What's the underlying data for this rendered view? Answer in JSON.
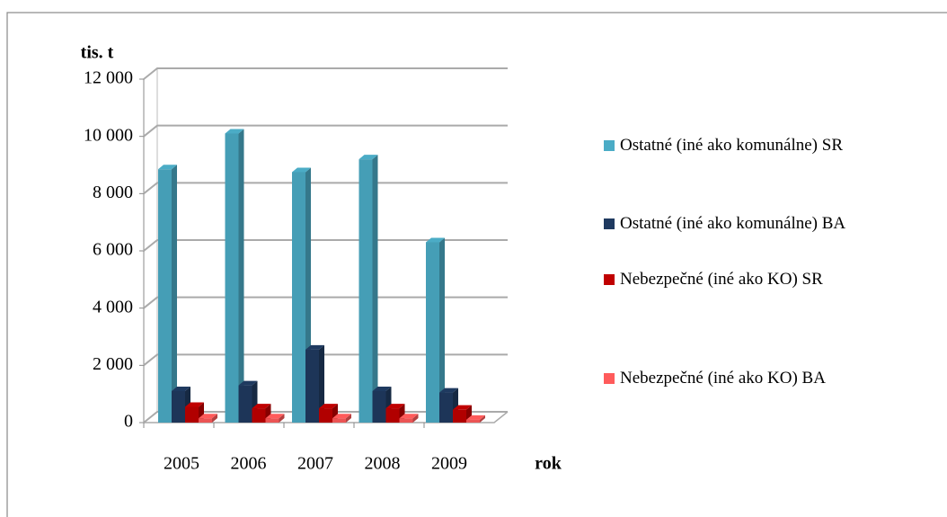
{
  "chart_data": {
    "type": "bar3d",
    "y_label": "tis. t",
    "x_label": "rok",
    "categories": [
      "2005",
      "2006",
      "2007",
      "2008",
      "2009"
    ],
    "series": [
      {
        "name": "Ostatné (iné ako komunálne) SR",
        "color": "#4bacc6",
        "values": [
          8850,
          10100,
          8750,
          9200,
          6300
        ]
      },
      {
        "name": "Ostatné (iné ako komunálne) BA",
        "color": "#1f3a60",
        "values": [
          1100,
          1300,
          2550,
          1100,
          1050
        ]
      },
      {
        "name": "Nebezpečné (iné ako KO) SR",
        "color": "#c00000",
        "values": [
          550,
          500,
          500,
          500,
          450
        ]
      },
      {
        "name": "Nebezpečné (iné ako KO) BA",
        "color": "#ff5b5b",
        "values": [
          150,
          150,
          150,
          150,
          100
        ]
      }
    ],
    "ylim": [
      0,
      12000
    ],
    "yticks": [
      0,
      {
        "value": 2000,
        "label": "2 000"
      },
      {
        "value": 4000,
        "label": "4 000"
      },
      {
        "value": 6000,
        "label": "6 000"
      },
      {
        "value": 8000,
        "label": "8 000"
      },
      {
        "value": 10000,
        "label": "10 000"
      },
      {
        "value": 12000,
        "label": "12 000"
      }
    ],
    "grid": true,
    "legend": "right"
  }
}
